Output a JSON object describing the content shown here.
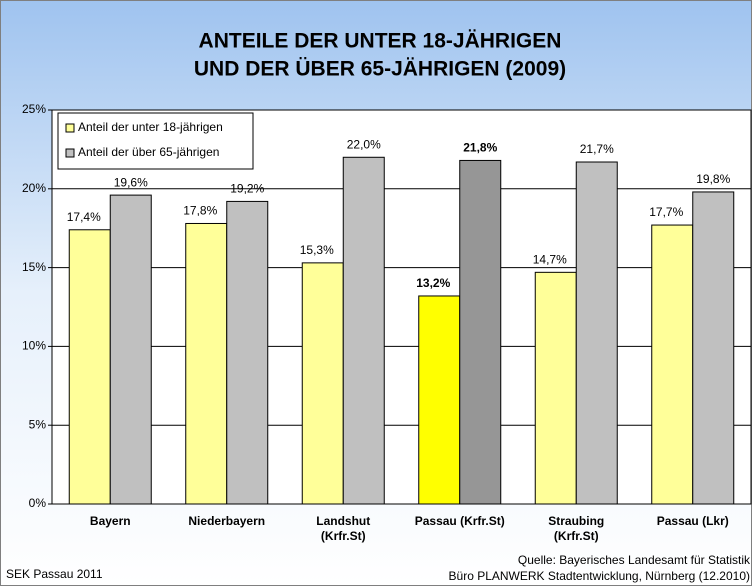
{
  "chart_data": {
    "type": "bar",
    "title": [
      "ANTEILE DER UNTER 18-JÄHRIGEN",
      "UND DER ÜBER 65-JÄHRIGEN (2009)"
    ],
    "categories": [
      "Bayern",
      "Niederbayern",
      "Landshut\n(Krfr.St)",
      "Passau (Krfr.St)",
      "Straubing\n(Krfr.St)",
      "Passau (Lkr)"
    ],
    "series": [
      {
        "name": "Anteil der unter 18-jährigen",
        "color": "#ffff99",
        "point_colors": [
          "#ffff99",
          "#ffff99",
          "#ffff99",
          "#ffff00",
          "#ffff99",
          "#ffff99"
        ],
        "values": [
          17.4,
          17.8,
          15.3,
          13.2,
          14.7,
          17.7
        ],
        "value_labels": [
          "17,4%",
          "17,8%",
          "15,3%",
          "13,2%",
          "14,7%",
          "17,7%"
        ]
      },
      {
        "name": "Anteil der über 65-jährigen",
        "color": "#c0c0c0",
        "point_colors": [
          "#c0c0c0",
          "#c0c0c0",
          "#c0c0c0",
          "#969696",
          "#c0c0c0",
          "#c0c0c0"
        ],
        "values": [
          19.6,
          19.2,
          22.0,
          21.8,
          21.7,
          19.8
        ],
        "value_labels": [
          "19,6%",
          "19,2%",
          "22,0%",
          "21,8%",
          "21,7%",
          "19,8%"
        ]
      }
    ],
    "bold_value_labels": [
      false,
      false,
      false,
      true,
      false,
      false
    ],
    "ylim": [
      0,
      25
    ],
    "yticks": [
      {
        "value": 0,
        "label": "0%"
      },
      {
        "value": 5,
        "label": "5%"
      },
      {
        "value": 10,
        "label": "10%"
      },
      {
        "value": 15,
        "label": "15%"
      },
      {
        "value": 20,
        "label": "20%"
      },
      {
        "value": 25,
        "label": "25%"
      }
    ],
    "grid": true,
    "legend": "top-left",
    "footer_left": "SEK Passau 2011",
    "source": [
      "Quelle: Bayerisches Landesamt für Statistik",
      "Büro PLANWERK Stadtentwicklung, Nürnberg  (12.2010)"
    ]
  }
}
